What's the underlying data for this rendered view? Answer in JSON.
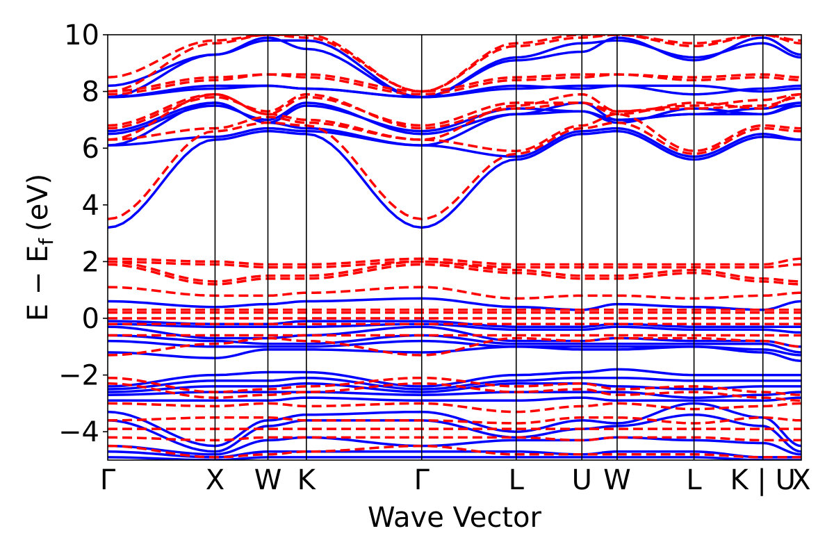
{
  "chart_data": {
    "type": "line",
    "title": "",
    "xlabel": "Wave Vector",
    "ylabel_main": "E − E",
    "ylabel_sub": "f",
    "ylabel_unit": "(eV)",
    "ylim": [
      -5,
      10
    ],
    "xlim": [
      0,
      4.33
    ],
    "yticks": [
      -4,
      -2,
      0,
      2,
      4,
      6,
      8,
      10
    ],
    "ytick_labels": [
      "−4",
      "−2",
      "0",
      "2",
      "4",
      "6",
      "8",
      "10"
    ],
    "high_symmetry_points": [
      {
        "label": "Γ",
        "x": 0
      },
      {
        "label": "X",
        "x": 0.67
      },
      {
        "label": "W",
        "x": 1.0
      },
      {
        "label": "K",
        "x": 1.24
      },
      {
        "label": "Γ",
        "x": 1.96
      },
      {
        "label": "L",
        "x": 2.55
      },
      {
        "label": "U",
        "x": 2.96
      },
      {
        "label": "W",
        "x": 3.18
      },
      {
        "label": "L",
        "x": 3.66
      },
      {
        "label": "K | U",
        "x": 4.09
      },
      {
        "label": "X",
        "x": 4.33
      }
    ],
    "series": [
      {
        "color": "#0000ff",
        "dash": "solid",
        "values": [
          [
            3.2,
            6.3,
            6.6,
            6.5,
            3.2,
            5.6,
            6.5,
            6.6,
            5.6,
            6.4,
            6.3
          ],
          [
            6.1,
            6.4,
            6.7,
            6.6,
            6.1,
            5.7,
            6.6,
            6.7,
            5.7,
            6.5,
            6.3
          ],
          [
            6.1,
            7.6,
            6.9,
            6.7,
            6.1,
            7.2,
            7.6,
            7.0,
            7.2,
            7.4,
            7.6
          ],
          [
            6.5,
            7.5,
            7.0,
            7.6,
            6.5,
            7.2,
            7.3,
            7.0,
            7.2,
            7.2,
            7.5
          ],
          [
            6.6,
            7.6,
            6.9,
            7.5,
            6.6,
            7.4,
            7.3,
            6.9,
            7.4,
            7.2,
            7.6
          ],
          [
            7.8,
            8.2,
            8.2,
            8.1,
            7.8,
            8.1,
            8.2,
            8.2,
            7.9,
            8.1,
            8.2
          ],
          [
            7.8,
            8.1,
            8.2,
            8.1,
            7.8,
            8.2,
            8.1,
            8.2,
            8.2,
            8.0,
            8.1
          ],
          [
            7.8,
            9.3,
            9.9,
            9.5,
            7.8,
            9.1,
            9.4,
            9.9,
            9.1,
            9.9,
            9.3
          ],
          [
            8.2,
            9.3,
            9.8,
            9.8,
            7.8,
            9.2,
            9.7,
            9.8,
            9.2,
            9.7,
            9.2
          ],
          [
            0.6,
            0.4,
            0.5,
            0.6,
            0.7,
            0.4,
            0.3,
            0.5,
            0.4,
            0.3,
            0.6
          ],
          [
            -0.1,
            -0.2,
            -0.2,
            -0.1,
            -0.1,
            -0.3,
            -0.3,
            -0.2,
            -0.3,
            -0.3,
            -0.3
          ],
          [
            -0.2,
            -0.3,
            -0.3,
            -0.3,
            -0.2,
            -0.4,
            -0.4,
            -0.3,
            -0.4,
            -0.4,
            -0.5
          ],
          [
            -0.3,
            -0.7,
            -0.7,
            -0.6,
            -0.3,
            -0.8,
            -0.8,
            -0.7,
            -0.8,
            -0.8,
            -1.0
          ],
          [
            -0.6,
            -0.8,
            -0.9,
            -0.9,
            -0.6,
            -0.9,
            -0.9,
            -0.9,
            -0.9,
            -0.9,
            -1.2
          ],
          [
            -0.8,
            -1.0,
            -1.0,
            -1.0,
            -0.8,
            -1.0,
            -1.0,
            -1.0,
            -1.0,
            -1.1,
            -1.3
          ],
          [
            -1.2,
            -1.4,
            -1.1,
            -1.1,
            -1.2,
            -1.0,
            -1.1,
            -1.1,
            -1.0,
            -1.2,
            -1.5
          ],
          [
            -2.4,
            -2.0,
            -1.9,
            -1.9,
            -2.4,
            -2.0,
            -1.9,
            -1.8,
            -2.0,
            -2.0,
            -2.0
          ],
          [
            -2.5,
            -2.2,
            -2.2,
            -2.1,
            -2.5,
            -2.2,
            -2.1,
            -2.1,
            -2.2,
            -2.2,
            -2.2
          ],
          [
            -2.6,
            -2.4,
            -2.4,
            -2.3,
            -2.6,
            -2.3,
            -2.3,
            -2.4,
            -2.5,
            -2.4,
            -2.4
          ],
          [
            -2.7,
            -2.6,
            -2.6,
            -2.6,
            -2.7,
            -2.6,
            -2.6,
            -2.6,
            -2.8,
            -2.7,
            -2.6
          ],
          [
            -2.9,
            -2.9,
            -2.9,
            -2.8,
            -2.9,
            -2.9,
            -2.8,
            -2.9,
            -2.9,
            -2.9,
            -2.8
          ],
          [
            -3.3,
            -4.5,
            -3.6,
            -3.4,
            -3.3,
            -4.0,
            -3.6,
            -3.7,
            -3.0,
            -3.5,
            -4.5
          ],
          [
            -3.6,
            -4.7,
            -3.8,
            -3.6,
            -3.6,
            -4.2,
            -3.9,
            -3.8,
            -3.4,
            -3.8,
            -4.7
          ],
          [
            -4.5,
            -4.8,
            -4.3,
            -4.2,
            -4.5,
            -4.3,
            -4.3,
            -4.2,
            -4.3,
            -4.4,
            -4.8
          ],
          [
            -4.7,
            -4.9,
            -4.7,
            -4.7,
            -4.7,
            -4.7,
            -4.8,
            -4.7,
            -4.7,
            -4.9,
            -4.9
          ],
          [
            -4.9,
            -5.0,
            -4.9,
            -4.9,
            -4.9,
            -4.9,
            -4.9,
            -4.9,
            -4.9,
            -5.0,
            -5.0
          ]
        ]
      },
      {
        "color": "#ff0000",
        "dash": "dashed",
        "values": [
          [
            3.5,
            6.6,
            6.9,
            6.8,
            3.5,
            5.8,
            6.7,
            6.9,
            5.8,
            6.7,
            6.6
          ],
          [
            6.3,
            6.7,
            7.1,
            6.9,
            6.3,
            5.9,
            6.8,
            7.2,
            5.9,
            6.8,
            6.7
          ],
          [
            6.3,
            7.9,
            7.2,
            7.0,
            6.3,
            7.5,
            7.9,
            7.3,
            7.5,
            7.7,
            7.9
          ],
          [
            6.7,
            7.8,
            7.3,
            7.9,
            6.7,
            7.4,
            7.6,
            7.3,
            7.4,
            7.5,
            7.8
          ],
          [
            6.8,
            7.9,
            7.2,
            7.8,
            6.8,
            7.6,
            7.6,
            7.2,
            7.6,
            7.4,
            7.9
          ],
          [
            7.9,
            8.4,
            8.6,
            8.5,
            7.9,
            8.4,
            8.5,
            8.6,
            8.4,
            8.5,
            8.4
          ],
          [
            8.0,
            8.5,
            8.6,
            8.6,
            8.0,
            8.5,
            8.6,
            8.6,
            8.5,
            8.6,
            8.5
          ],
          [
            8.0,
            9.7,
            10.0,
            9.9,
            8.0,
            9.6,
            9.9,
            10.0,
            9.6,
            10.0,
            9.7
          ],
          [
            8.5,
            9.8,
            10.0,
            10.0,
            8.0,
            9.7,
            10.0,
            10.0,
            9.7,
            10.0,
            9.8
          ],
          [
            2.1,
            2.0,
            1.9,
            1.9,
            2.1,
            1.9,
            1.9,
            1.9,
            1.9,
            1.9,
            2.1
          ],
          [
            2.0,
            1.9,
            1.8,
            1.8,
            2.0,
            1.8,
            1.8,
            1.8,
            1.8,
            1.8,
            1.9
          ],
          [
            2.0,
            1.3,
            1.5,
            1.5,
            2.0,
            1.7,
            1.5,
            1.5,
            1.7,
            1.4,
            1.3
          ],
          [
            1.9,
            1.2,
            1.4,
            1.4,
            1.9,
            1.6,
            1.4,
            1.4,
            1.6,
            1.3,
            1.2
          ],
          [
            1.1,
            0.8,
            0.8,
            0.9,
            1.1,
            0.7,
            0.8,
            0.8,
            0.7,
            0.8,
            0.9
          ],
          [
            0.3,
            0.3,
            0.3,
            0.3,
            0.3,
            0.3,
            0.3,
            0.3,
            0.3,
            0.3,
            0.3
          ],
          [
            0.2,
            0.2,
            0.2,
            0.2,
            0.2,
            0.2,
            0.2,
            0.2,
            0.2,
            0.2,
            0.2
          ],
          [
            0.0,
            0.0,
            0.0,
            0.0,
            0.0,
            0.0,
            0.0,
            0.0,
            0.0,
            0.0,
            0.0
          ],
          [
            -0.2,
            -0.2,
            -0.2,
            -0.2,
            -0.2,
            -0.2,
            -0.2,
            -0.2,
            -0.2,
            -0.2,
            -0.2
          ],
          [
            -0.6,
            -0.6,
            -0.6,
            -0.6,
            -0.6,
            -0.6,
            -0.6,
            -0.6,
            -0.6,
            -0.6,
            -0.6
          ],
          [
            -1.3,
            -0.9,
            -0.7,
            -0.8,
            -1.3,
            -0.7,
            -0.8,
            -0.7,
            -0.7,
            -0.8,
            -1.0
          ],
          [
            -2.1,
            -2.6,
            -2.5,
            -2.4,
            -2.1,
            -2.4,
            -2.3,
            -2.5,
            -2.4,
            -2.6,
            -2.7
          ],
          [
            -2.3,
            -2.8,
            -2.7,
            -2.6,
            -2.3,
            -2.6,
            -2.5,
            -2.7,
            -2.6,
            -2.8,
            -2.9
          ],
          [
            -3.0,
            -3.1,
            -3.0,
            -3.1,
            -3.0,
            -3.3,
            -3.1,
            -3.0,
            -3.2,
            -3.1,
            -3.0
          ],
          [
            -3.6,
            -3.5,
            -3.5,
            -3.6,
            -3.6,
            -3.7,
            -3.5,
            -3.5,
            -3.7,
            -3.5,
            -3.6
          ],
          [
            -3.9,
            -3.9,
            -3.9,
            -3.9,
            -3.9,
            -3.9,
            -3.9,
            -3.9,
            -3.9,
            -3.9,
            -3.9
          ],
          [
            -4.2,
            -4.3,
            -4.2,
            -4.2,
            -4.2,
            -4.2,
            -4.3,
            -4.2,
            -4.2,
            -4.3,
            -4.3
          ],
          [
            -4.5,
            -4.9,
            -4.8,
            -4.7,
            -4.5,
            -4.8,
            -4.8,
            -4.8,
            -4.8,
            -4.9,
            -4.9
          ]
        ]
      }
    ],
    "grid": false,
    "legend": "none"
  }
}
